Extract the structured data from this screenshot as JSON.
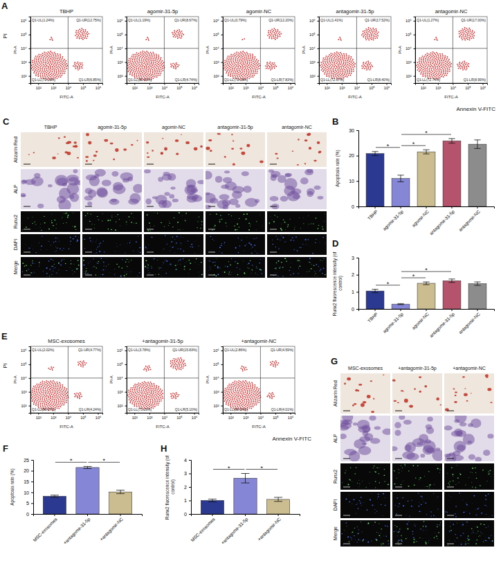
{
  "chart_data": [
    {
      "type": "flow",
      "panel": "A",
      "y_label": "PI",
      "x_label": "Annexin V-FITC",
      "log": true,
      "color": "#e02424",
      "plots": [
        {
          "title": "TBHP",
          "x_label": "FITC-A",
          "y_label": "PI-A",
          "xlim": [
            30,
            2000000
          ],
          "ylim": [
            30,
            2000000
          ],
          "xticks": [
            {
              "value": 100,
              "label": "10²"
            },
            {
              "value": 1000,
              "label": "10³"
            },
            {
              "value": 10000,
              "label": "10⁴"
            },
            {
              "value": 100000,
              "label": "10⁵"
            },
            {
              "value": 1000000,
              "label": "10⁶"
            }
          ],
          "yticks": [
            {
              "value": 100,
              "label": "10²"
            },
            {
              "value": 1000,
              "label": "10³"
            },
            {
              "value": 10000,
              "label": "10⁴"
            },
            {
              "value": 100000,
              "label": "10⁵"
            },
            {
              "value": 1000000,
              "label": "10⁶"
            }
          ],
          "gate": [
            10000,
            10000
          ],
          "quadrants": [
            {
              "value": 1.24,
              "label": "Q1-UL(1.24%)"
            },
            {
              "value": 12.75,
              "label": "Q1-UR(12.75%)"
            },
            {
              "value": 79.16,
              "label": "Q1-LL(79.16%)"
            },
            {
              "value": 6.85,
              "label": "Q1-LR(6.85%)"
            }
          ]
        },
        {
          "title": "agomir-31-5p",
          "x_label": "FITC-A",
          "y_label": "PI-A",
          "xlim": [
            30,
            2000000
          ],
          "ylim": [
            30,
            2000000
          ],
          "xticks": [
            {
              "value": 100,
              "label": "10²"
            },
            {
              "value": 1000,
              "label": "10³"
            },
            {
              "value": 10000,
              "label": "10⁴"
            },
            {
              "value": 100000,
              "label": "10⁵"
            },
            {
              "value": 1000000,
              "label": "10⁶"
            }
          ],
          "yticks": [
            {
              "value": 100,
              "label": "10²"
            },
            {
              "value": 1000,
              "label": "10³"
            },
            {
              "value": 10000,
              "label": "10⁴"
            },
            {
              "value": 100000,
              "label": "10⁵"
            },
            {
              "value": 1000000,
              "label": "10⁶"
            }
          ],
          "gate": [
            10000,
            10000
          ],
          "quadrants": [
            {
              "value": 1.19,
              "label": "Q1-UL(1.19%)"
            },
            {
              "value": 8.67,
              "label": "Q1-UR(8.67%)"
            },
            {
              "value": 85.4,
              "label": "Q1-LL(85.40%)"
            },
            {
              "value": 4.74,
              "label": "Q1-LR(4.74%)"
            }
          ]
        },
        {
          "title": "agomir-NC",
          "x_label": "FITC-A",
          "y_label": "PI-A",
          "xlim": [
            30,
            2000000
          ],
          "ylim": [
            30,
            2000000
          ],
          "xticks": [
            {
              "value": 100,
              "label": "10²"
            },
            {
              "value": 1000,
              "label": "10³"
            },
            {
              "value": 10000,
              "label": "10⁴"
            },
            {
              "value": 100000,
              "label": "10⁵"
            },
            {
              "value": 1000000,
              "label": "10⁶"
            }
          ],
          "yticks": [
            {
              "value": 100,
              "label": "10²"
            },
            {
              "value": 1000,
              "label": "10³"
            },
            {
              "value": 10000,
              "label": "10⁴"
            },
            {
              "value": 100000,
              "label": "10⁵"
            },
            {
              "value": 1000000,
              "label": "10⁶"
            }
          ],
          "gate": [
            10000,
            10000
          ],
          "quadrants": [
            {
              "value": 0.79,
              "label": "Q1-UL(0.79%)"
            },
            {
              "value": 12.2,
              "label": "Q1-UR(12.20%)"
            },
            {
              "value": 79.18,
              "label": "Q1-LL(79.18%)"
            },
            {
              "value": 7.83,
              "label": "Q1-LR(7.83%)"
            }
          ]
        },
        {
          "title": "antagomir-31-5p",
          "x_label": "FITC-A",
          "y_label": "PI-A",
          "xlim": [
            30,
            2000000
          ],
          "ylim": [
            30,
            2000000
          ],
          "xticks": [
            {
              "value": 100,
              "label": "10²"
            },
            {
              "value": 1000,
              "label": "10³"
            },
            {
              "value": 10000,
              "label": "10⁴"
            },
            {
              "value": 100000,
              "label": "10⁵"
            },
            {
              "value": 1000000,
              "label": "10⁶"
            }
          ],
          "yticks": [
            {
              "value": 100,
              "label": "10²"
            },
            {
              "value": 1000,
              "label": "10³"
            },
            {
              "value": 10000,
              "label": "10⁴"
            },
            {
              "value": 100000,
              "label": "10⁵"
            },
            {
              "value": 1000000,
              "label": "10⁶"
            }
          ],
          "gate": [
            10000,
            10000
          ],
          "quadrants": [
            {
              "value": 1.41,
              "label": "Q1-UL(1.41%)"
            },
            {
              "value": 17.52,
              "label": "Q1-UR(17.52%)"
            },
            {
              "value": 72.67,
              "label": "Q1-LL(72.67%)"
            },
            {
              "value": 8.4,
              "label": "Q1-LR(8.40%)"
            }
          ]
        },
        {
          "title": "antagomir-NC",
          "x_label": "FITC-A",
          "y_label": "PI-A",
          "xlim": [
            30,
            2000000
          ],
          "ylim": [
            30,
            2000000
          ],
          "xticks": [
            {
              "value": 100,
              "label": "10²"
            },
            {
              "value": 1000,
              "label": "10³"
            },
            {
              "value": 10000,
              "label": "10⁴"
            },
            {
              "value": 100000,
              "label": "10⁵"
            },
            {
              "value": 1000000,
              "label": "10⁶"
            }
          ],
          "yticks": [
            {
              "value": 100,
              "label": "10²"
            },
            {
              "value": 1000,
              "label": "10³"
            },
            {
              "value": 10000,
              "label": "10⁴"
            },
            {
              "value": 100000,
              "label": "10⁵"
            },
            {
              "value": 1000000,
              "label": "10⁶"
            }
          ],
          "gate": [
            10000,
            10000
          ],
          "quadrants": [
            {
              "value": 1.27,
              "label": "Q1-UL(1.27%)"
            },
            {
              "value": 17.0,
              "label": "Q1-UR(17.00%)"
            },
            {
              "value": 72.74,
              "label": "Q1-LL(72.74%)"
            },
            {
              "value": 8.99,
              "label": "Q1-LR(8.99%)"
            }
          ]
        }
      ]
    },
    {
      "type": "bar",
      "panel": "B",
      "y_label": "Apoptosis rate (%)",
      "categories": [
        "TBHP",
        "agomir-31-5p",
        "agomir-NC",
        "antagomir-31-5p",
        "antagomir-NC"
      ],
      "values": [
        20.8,
        11.0,
        21.5,
        25.8,
        24.5
      ],
      "errors": [
        0.8,
        1.3,
        0.8,
        0.9,
        1.7
      ],
      "colors": [
        "#2b3990",
        "#8587d6",
        "#cbbd8f",
        "#b5536c",
        "#8c8c8c"
      ],
      "ylim": [
        0,
        30
      ],
      "yticks": [
        0,
        10,
        20,
        30
      ],
      "significance": [
        {
          "pair": [
            "TBHP",
            "agomir-31-5p"
          ],
          "label": "*"
        },
        {
          "pair": [
            "agomir-31-5p",
            "agomir-NC"
          ],
          "label": "*"
        },
        {
          "pair": [
            "agomir-31-5p",
            "antagomir-31-5p"
          ],
          "label": "*"
        }
      ]
    },
    {
      "type": "image",
      "panel": "C",
      "columns": [
        "TBHP",
        "agomir-31-5p",
        "agomir-NC",
        "antagomir-31-5p",
        "antagomir-NC"
      ],
      "rows": [
        "Alizarin Red",
        "ALP",
        "Runx2",
        "DAPI",
        "Merge"
      ]
    },
    {
      "type": "bar",
      "panel": "D",
      "y_label": "Runx2 fluorescence intensity (of control)",
      "categories": [
        "TBHP",
        "agomir-31-5p",
        "agomir-NC",
        "antagomir-31-5p",
        "antagomir-NC"
      ],
      "values": [
        1.05,
        0.28,
        1.5,
        1.65,
        1.48
      ],
      "errors": [
        0.1,
        0.03,
        0.08,
        0.1,
        0.1
      ],
      "colors": [
        "#2b3990",
        "#8587d6",
        "#cbbd8f",
        "#b5536c",
        "#8c8c8c"
      ],
      "ylim": [
        0,
        3
      ],
      "yticks": [
        0,
        1,
        2,
        3
      ],
      "significance": [
        {
          "pair": [
            "TBHP",
            "agomir-31-5p"
          ],
          "label": "*"
        },
        {
          "pair": [
            "agomir-31-5p",
            "agomir-NC"
          ],
          "label": "*"
        },
        {
          "pair": [
            "agomir-31-5p",
            "antagomir-31-5p"
          ],
          "label": "*"
        }
      ]
    },
    {
      "type": "flow",
      "panel": "E",
      "y_label": "PI",
      "x_label": "Annexin V-FITC",
      "log": true,
      "color": "#e02424",
      "plots": [
        {
          "title": "MSC-exosomes",
          "x_label": "FITC-A",
          "y_label": "PI-A",
          "xlim": [
            30,
            2000000
          ],
          "ylim": [
            30,
            2000000
          ],
          "xticks": [
            {
              "value": 100,
              "label": "10²"
            },
            {
              "value": 1000,
              "label": "10³"
            },
            {
              "value": 10000,
              "label": "10⁴"
            },
            {
              "value": 100000,
              "label": "10⁵"
            },
            {
              "value": 1000000,
              "label": "10⁶"
            }
          ],
          "yticks": [
            {
              "value": 100,
              "label": "10²"
            },
            {
              "value": 1000,
              "label": "10³"
            },
            {
              "value": 10000,
              "label": "10⁴"
            },
            {
              "value": 100000,
              "label": "10⁵"
            },
            {
              "value": 1000000,
              "label": "10⁶"
            }
          ],
          "gate": [
            10000,
            10000
          ],
          "quadrants": [
            {
              "value": 2.02,
              "label": "Q1-UL(2.02%)"
            },
            {
              "value": 4.77,
              "label": "Q1-UR(4.77%)"
            },
            {
              "value": 88.97,
              "label": "Q1-LL(88.97%)"
            },
            {
              "value": 4.24,
              "label": "Q1-LR(4.24%)"
            }
          ]
        },
        {
          "title": "+antagomir-31-5p",
          "x_label": "FITC-A",
          "y_label": "PI-A",
          "xlim": [
            30,
            2000000
          ],
          "ylim": [
            30,
            2000000
          ],
          "xticks": [
            {
              "value": 100,
              "label": "10²"
            },
            {
              "value": 1000,
              "label": "10³"
            },
            {
              "value": 10000,
              "label": "10⁴"
            },
            {
              "value": 100000,
              "label": "10⁵"
            },
            {
              "value": 1000000,
              "label": "10⁶"
            }
          ],
          "yticks": [
            {
              "value": 100,
              "label": "10²"
            },
            {
              "value": 1000,
              "label": "10³"
            },
            {
              "value": 10000,
              "label": "10⁴"
            },
            {
              "value": 100000,
              "label": "10⁵"
            },
            {
              "value": 1000000,
              "label": "10⁶"
            }
          ],
          "gate": [
            10000,
            10000
          ],
          "quadrants": [
            {
              "value": 3.78,
              "label": "Q1-UL(3.78%)"
            },
            {
              "value": 15.83,
              "label": "Q1-UR(15.83%)"
            },
            {
              "value": 75.29,
              "label": "Q1-LL(75.29%)"
            },
            {
              "value": 5.1,
              "label": "Q1-LR(5.10%)"
            }
          ]
        },
        {
          "title": "+antagomir-NC",
          "x_label": "FITC-A",
          "y_label": "PI-A",
          "xlim": [
            30,
            2000000
          ],
          "ylim": [
            30,
            2000000
          ],
          "xticks": [
            {
              "value": 100,
              "label": "10²"
            },
            {
              "value": 1000,
              "label": "10³"
            },
            {
              "value": 10000,
              "label": "10⁴"
            },
            {
              "value": 100000,
              "label": "10⁵"
            },
            {
              "value": 1000000,
              "label": "10⁶"
            }
          ],
          "yticks": [
            {
              "value": 100,
              "label": "10²"
            },
            {
              "value": 1000,
              "label": "10³"
            },
            {
              "value": 10000,
              "label": "10⁴"
            },
            {
              "value": 100000,
              "label": "10⁵"
            },
            {
              "value": 1000000,
              "label": "10⁶"
            }
          ],
          "gate": [
            10000,
            10000
          ],
          "quadrants": [
            {
              "value": 2.86,
              "label": "Q1-UL(2.86%)"
            },
            {
              "value": 4.59,
              "label": "Q1-UR(4.59%)"
            },
            {
              "value": 88.54,
              "label": "Q1-LL(88.54%)"
            },
            {
              "value": 4.01,
              "label": "Q1-LR(4.01%)"
            }
          ]
        }
      ]
    },
    {
      "type": "bar",
      "panel": "F",
      "y_label": "Apoptosis rate (%)",
      "categories": [
        "MSC-exosomes",
        "+antagomir-31-5p",
        "+antagomir-NC"
      ],
      "values": [
        8.2,
        21.5,
        10.2
      ],
      "errors": [
        0.5,
        0.5,
        0.8
      ],
      "colors": [
        "#2b3990",
        "#8587d6",
        "#cbbd8f"
      ],
      "ylim": [
        0,
        25
      ],
      "yticks": [
        0,
        5,
        10,
        15,
        20,
        25
      ],
      "significance": [
        {
          "pair": [
            "MSC-exosomes",
            "+antagomir-31-5p"
          ],
          "label": "*"
        },
        {
          "pair": [
            "+antagomir-31-5p",
            "+antagomir-NC"
          ],
          "label": "*"
        }
      ]
    },
    {
      "type": "image",
      "panel": "G",
      "columns": [
        "MSC-exosomes",
        "+antagomir-31-5p",
        "+antagomir-NC"
      ],
      "rows": [
        "Alizarin Red",
        "ALP",
        "Runx2",
        "DAPI",
        "Merge"
      ]
    },
    {
      "type": "bar",
      "panel": "H",
      "y_label": "Runx2 fluorescence intensity (of control)",
      "categories": [
        "MSC-exosomes",
        "+antagomir-31-5p",
        "+antagomir-NC"
      ],
      "values": [
        1.0,
        2.65,
        1.08
      ],
      "errors": [
        0.1,
        0.35,
        0.15
      ],
      "colors": [
        "#2b3990",
        "#8587d6",
        "#cbbd8f"
      ],
      "ylim": [
        0,
        4
      ],
      "yticks": [
        0,
        1,
        2,
        3,
        4
      ],
      "significance": [
        {
          "pair": [
            "MSC-exosomes",
            "+antagomir-31-5p"
          ],
          "label": "*"
        },
        {
          "pair": [
            "+antagomir-31-5p",
            "+antagomir-NC"
          ],
          "label": "*"
        }
      ]
    }
  ]
}
